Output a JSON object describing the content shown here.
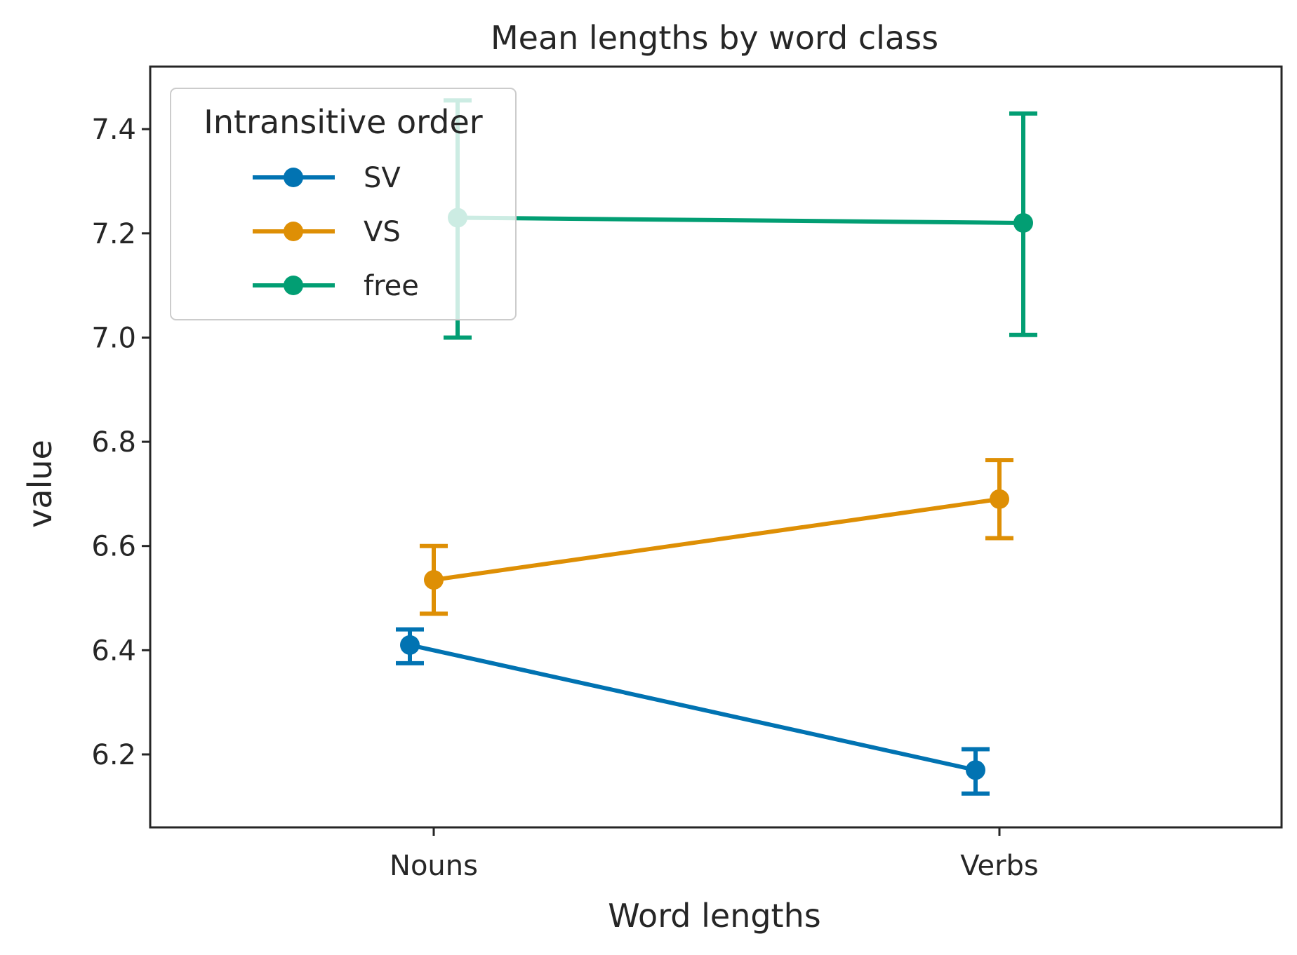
{
  "chart_data": {
    "type": "line",
    "title": "Mean lengths by word class",
    "xlabel": "Word lengths",
    "ylabel": "value",
    "categories": [
      "Nouns",
      "Verbs"
    ],
    "ylim": [
      6.06,
      7.52
    ],
    "yticks": [
      "6.2",
      "6.4",
      "6.6",
      "6.8",
      "7.0",
      "7.2",
      "7.4"
    ],
    "grid": false,
    "legend": {
      "title": "Intransitive order",
      "placement": "top-left"
    },
    "series": [
      {
        "name": "SV",
        "color": "#0173b2",
        "values": [
          6.41,
          6.17
        ],
        "ci_low": [
          6.375,
          6.125
        ],
        "ci_high": [
          6.44,
          6.21
        ]
      },
      {
        "name": "VS",
        "color": "#de8f05",
        "values": [
          6.535,
          6.69
        ],
        "ci_low": [
          6.47,
          6.615
        ],
        "ci_high": [
          6.6,
          6.765
        ]
      },
      {
        "name": "free",
        "color": "#029e73",
        "values": [
          7.23,
          7.22
        ],
        "ci_low": [
          7.0,
          7.005
        ],
        "ci_high": [
          7.455,
          7.43
        ]
      }
    ]
  }
}
